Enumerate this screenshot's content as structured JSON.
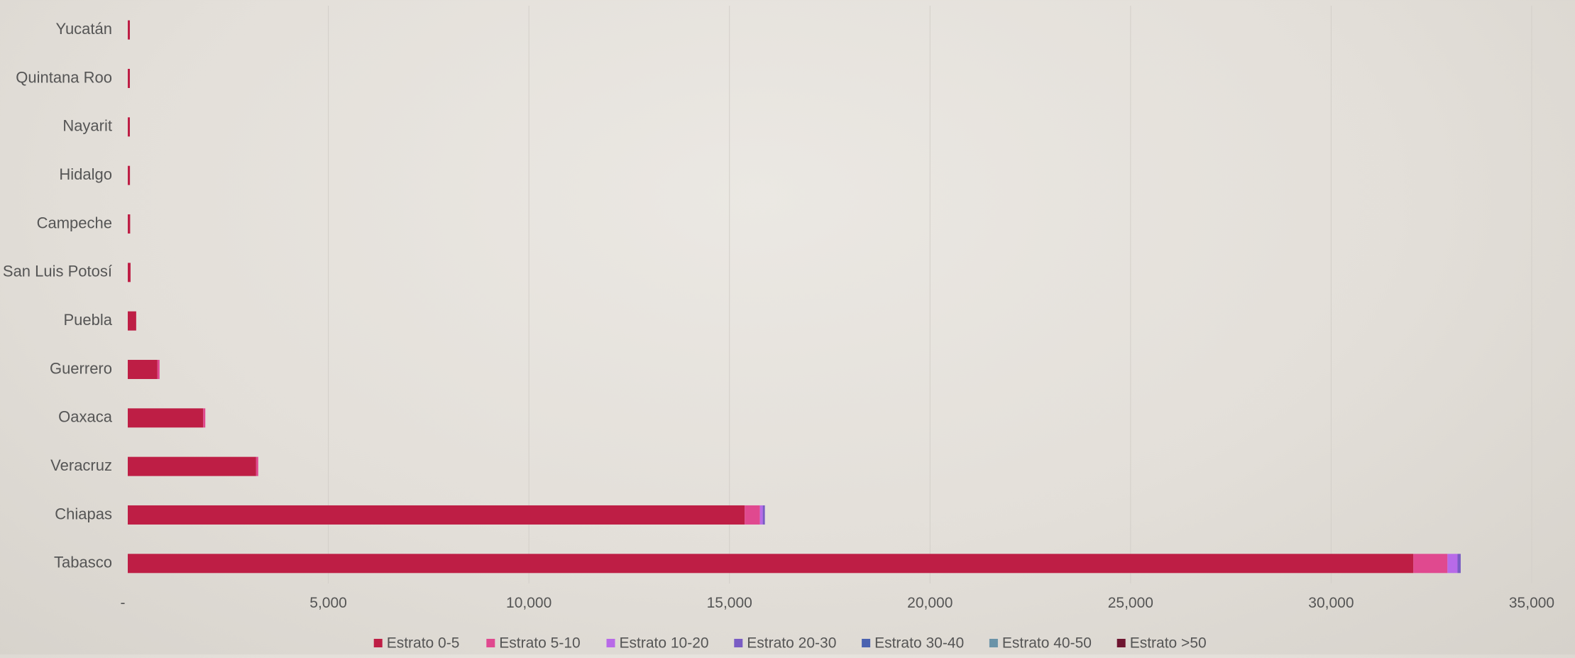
{
  "chart_data": {
    "type": "bar",
    "orientation": "horizontal",
    "stacked": true,
    "title": "",
    "xlabel": "",
    "ylabel": "",
    "categories": [
      "Tabasco",
      "Chiapas",
      "Veracruz",
      "Oaxaca",
      "Guerrero",
      "Puebla",
      "San Luis Potosí",
      "Campeche",
      "Hidalgo",
      "Nayarit",
      "Quintana Roo",
      "Yucatán"
    ],
    "series": [
      {
        "name": "Estrato 0-5",
        "color": "#be1e45",
        "values": [
          32050,
          15380,
          3200,
          1880,
          740,
          210,
          70,
          60,
          55,
          40,
          35,
          30
        ]
      },
      {
        "name": "Estrato 5-10",
        "color": "#e0498f",
        "values": [
          850,
          380,
          20,
          15,
          5,
          0,
          0,
          0,
          0,
          0,
          0,
          0
        ]
      },
      {
        "name": "Estrato 10-20",
        "color": "#b86ae8",
        "values": [
          250,
          70,
          0,
          0,
          0,
          0,
          0,
          0,
          0,
          0,
          0,
          0
        ]
      },
      {
        "name": "Estrato 20-30",
        "color": "#7a5cc4",
        "values": [
          80,
          20,
          0,
          0,
          0,
          0,
          0,
          0,
          0,
          0,
          0,
          0
        ]
      },
      {
        "name": "Estrato 30-40",
        "color": "#4a62b0",
        "values": [
          0,
          0,
          0,
          0,
          0,
          0,
          0,
          0,
          0,
          0,
          0,
          0
        ]
      },
      {
        "name": "Estrato 40-50",
        "color": "#6a93a8",
        "values": [
          0,
          0,
          0,
          0,
          0,
          0,
          0,
          0,
          0,
          0,
          0,
          0
        ]
      },
      {
        "name": "Estrato >50",
        "color": "#6e1530",
        "values": [
          0,
          0,
          0,
          0,
          0,
          0,
          0,
          0,
          0,
          0,
          0,
          0
        ]
      }
    ],
    "xlim": [
      0,
      35000
    ],
    "xticks": [
      0,
      5000,
      10000,
      15000,
      20000,
      25000,
      30000,
      35000
    ],
    "xtick_labels": [
      "-",
      "5,000",
      "10,000",
      "15,000",
      "20,000",
      "25,000",
      "30,000",
      "35,000"
    ],
    "grid": "vertical",
    "legend_position": "bottom"
  }
}
